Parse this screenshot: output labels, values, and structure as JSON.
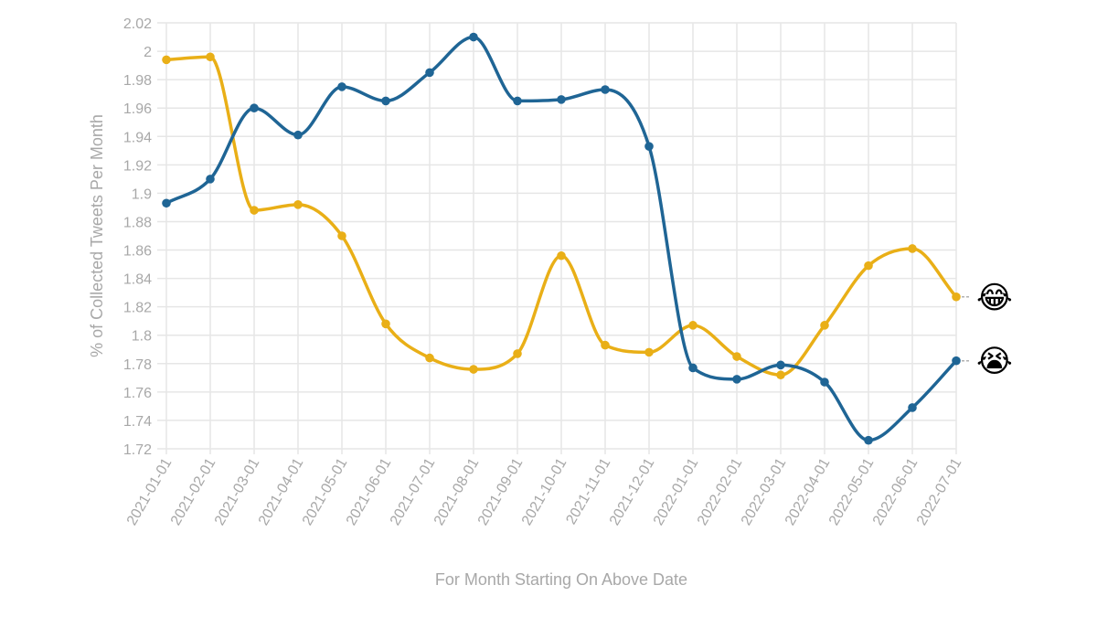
{
  "chart_data": {
    "type": "line",
    "xlabel": "For Month Starting On Above Date",
    "ylabel": "% of Collected Tweets Per Month",
    "x": [
      "2021-01-01",
      "2021-02-01",
      "2021-03-01",
      "2021-04-01",
      "2021-05-01",
      "2021-06-01",
      "2021-07-01",
      "2021-08-01",
      "2021-09-01",
      "2021-10-01",
      "2021-11-01",
      "2021-12-01",
      "2022-01-01",
      "2022-02-01",
      "2022-03-01",
      "2022-04-01",
      "2022-05-01",
      "2022-06-01",
      "2022-07-01"
    ],
    "ylim": [
      1.72,
      2.02
    ],
    "yticks": [
      "1.72",
      "1.74",
      "1.76",
      "1.78",
      "1.8",
      "1.82",
      "1.84",
      "1.86",
      "1.88",
      "1.9",
      "1.92",
      "1.94",
      "1.96",
      "1.98",
      "2",
      "2.02"
    ],
    "grid": true,
    "series": [
      {
        "emoji": "😂",
        "color": "#E9AF17",
        "values": [
          1.994,
          1.996,
          1.888,
          1.892,
          1.87,
          1.808,
          1.784,
          1.776,
          1.787,
          1.856,
          1.793,
          1.788,
          1.807,
          1.785,
          1.772,
          1.807,
          1.849,
          1.861,
          1.827
        ]
      },
      {
        "emoji": "😭",
        "color": "#1F6595",
        "values": [
          1.893,
          1.91,
          1.96,
          1.941,
          1.975,
          1.965,
          1.985,
          2.01,
          1.965,
          1.966,
          1.973,
          1.933,
          1.777,
          1.769,
          1.779,
          1.767,
          1.726,
          1.749,
          1.782
        ]
      }
    ]
  }
}
